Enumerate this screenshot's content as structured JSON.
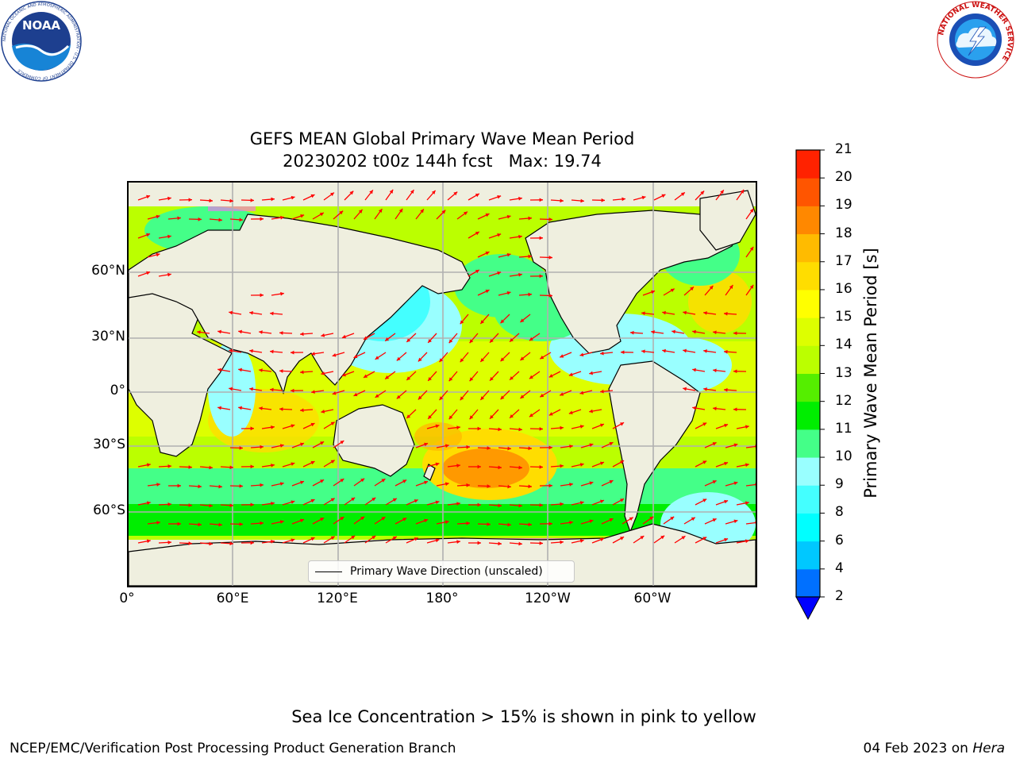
{
  "title_line1": "GEFS MEAN Global Primary Wave Mean Period",
  "title_line2": "20230202 t00z 144h fcst   Max: 19.74",
  "logos": {
    "noaa_text": "NOAA",
    "noaa_ring_text": "NATIONAL OCEANIC AND ATMOSPHERIC ADMINISTRATION · U.S. DEPARTMENT OF COMMERCE",
    "nws_ring_text": "NATIONAL WEATHER SERVICE"
  },
  "map": {
    "lat_labels": [
      "60°N",
      "30°N",
      "0°",
      "30°S",
      "60°S"
    ],
    "lon_labels": [
      "0°",
      "60°E",
      "120°E",
      "180°",
      "120°W",
      "60°W"
    ],
    "legend_label": "Primary Wave Direction (unscaled)",
    "arrow_color": "#ff0000"
  },
  "colorbar": {
    "label": "Primary Wave Mean Period [s]",
    "ticks": [
      "2",
      "4",
      "6",
      "8",
      "9",
      "10",
      "11",
      "12",
      "13",
      "14",
      "15",
      "16",
      "17",
      "18",
      "19",
      "20",
      "21"
    ],
    "levels": [
      2,
      4,
      6,
      8,
      9,
      10,
      11,
      12,
      13,
      14,
      15,
      16,
      17,
      18,
      19,
      20,
      21
    ],
    "colors": [
      "#0070ff",
      "#00c8ff",
      "#00ffff",
      "#44ffff",
      "#99ffff",
      "#44ff88",
      "#00ee00",
      "#55ee00",
      "#bbff00",
      "#ddff00",
      "#ffff00",
      "#ffdd00",
      "#ffbb00",
      "#ff8800",
      "#ff5500",
      "#ff2200"
    ],
    "extend_min_color": "#0000ff"
  },
  "sea_ice_note": "Sea Ice Concentration > 15% is shown in pink to yellow",
  "footer": {
    "left": "NCEP/EMC/Verification Post Processing Product Generation Branch",
    "right_prefix": "04 Feb 2023 on ",
    "right_machine": "Hera"
  }
}
